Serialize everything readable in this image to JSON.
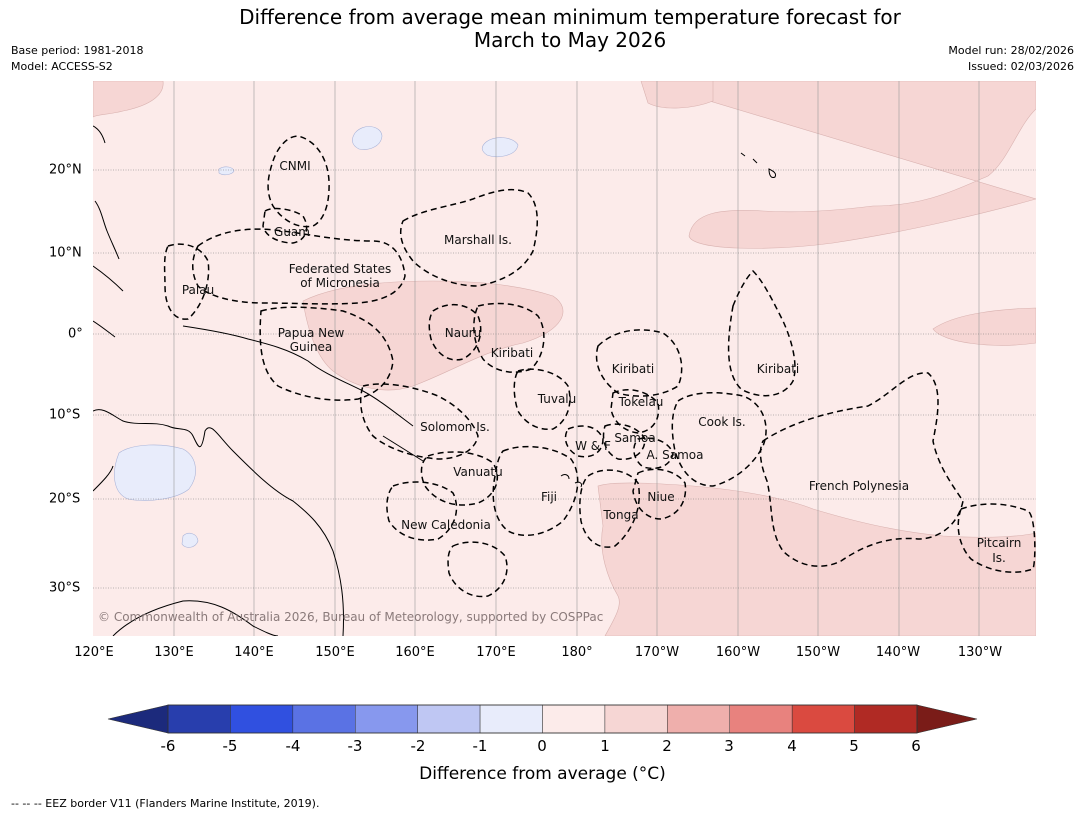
{
  "title": {
    "line1": "Difference from average mean minimum temperature forecast for",
    "line2": "March to May 2026"
  },
  "meta": {
    "base_period": "Base period: 1981-2018",
    "model": "Model: ACCESS-S2",
    "model_run": "Model run: 28/02/2026",
    "issued": "Issued: 02/03/2026"
  },
  "map": {
    "copyright": "© Commonwealth of Australia 2026, Bureau of Meteorology, supported by COSPPac",
    "longitude_labels": [
      "120°E",
      "130°E",
      "140°E",
      "150°E",
      "160°E",
      "170°E",
      "180°",
      "170°W",
      "160°W",
      "150°W",
      "140°W",
      "130°W"
    ],
    "latitude_labels": [
      "20°N",
      "10°N",
      "0°",
      "10°S",
      "20°S",
      "30°S"
    ],
    "regions": {
      "cnmi": "CNMI",
      "guam": "Guam",
      "marshall": "Marshall Is.",
      "fsm1": "Federated States",
      "fsm2": "of Micronesia",
      "palau": "Palau",
      "png1": "Papua New",
      "png2": "Guinea",
      "nauru": "Nauru",
      "kiribati_w": "Kiribati",
      "kiribati_c": "Kiribati",
      "kiribati_e": "Kiribati",
      "tuvalu": "Tuvalu",
      "tokelau": "Tokelau",
      "cook": "Cook Is.",
      "solomon": "Solomon Is.",
      "samoa": "Samoa",
      "wf": "W & F",
      "asamoa": "A. Samoa",
      "vanuatu": "Vanuatu",
      "fiji": "Fiji",
      "niue": "Niue",
      "tonga": "Tonga",
      "french_polynesia": "French Polynesia",
      "new_caledonia": "New Caledonia",
      "pitcairn1": "Pitcairn",
      "pitcairn2": "Is."
    },
    "colors": {
      "ocean_0_1": "#fcebea",
      "warm_1_2": "#f6d6d4",
      "cool_-1_0": "#e8ecfb",
      "grid": "#9a9a9a",
      "coast": "#000000"
    }
  },
  "colorbar": {
    "label": "Difference from average (°C)",
    "ticks": [
      "-6",
      "-5",
      "-4",
      "-3",
      "-2",
      "-1",
      "0",
      "1",
      "2",
      "3",
      "4",
      "5",
      "6"
    ],
    "colors": [
      "#283ead",
      "#3050e0",
      "#5a72e4",
      "#8798ee",
      "#bfc7f3",
      "#e8ecfb",
      "#fcebea",
      "#f6d6d4",
      "#efafac",
      "#e8827e",
      "#da4a40",
      "#b02a24"
    ],
    "extend_low": "#1c2a7c",
    "extend_high": "#7a1c18"
  },
  "footer": "--  --  -- EEZ border V11 (Flanders Marine Institute, 2019)."
}
